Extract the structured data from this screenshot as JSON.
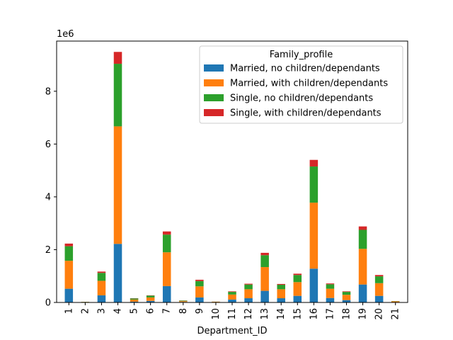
{
  "chart_data": {
    "type": "bar",
    "stacked": true,
    "title": "",
    "xlabel": "Department_ID",
    "ylabel": "",
    "y_offset_label": "1e6",
    "ylim": [
      0,
      9.9
    ],
    "y_ticks": [
      0,
      2,
      4,
      6,
      8
    ],
    "y_unit_multiplier": 1000000,
    "categories": [
      "1",
      "2",
      "3",
      "4",
      "5",
      "6",
      "7",
      "8",
      "9",
      "10",
      "11",
      "12",
      "13",
      "14",
      "15",
      "16",
      "17",
      "18",
      "19",
      "20",
      "21"
    ],
    "legend": {
      "title": "Family_profile",
      "placement": "top-right"
    },
    "series": [
      {
        "name": "Married, no children/dependants",
        "color": "#1f77b4",
        "values": [
          0.52,
          0.005,
          0.27,
          2.22,
          0.03,
          0.06,
          0.62,
          0.02,
          0.19,
          0.005,
          0.11,
          0.16,
          0.44,
          0.16,
          0.25,
          1.28,
          0.17,
          0.09,
          0.68,
          0.25,
          0.01
        ]
      },
      {
        "name": "Married, with children/dependants",
        "color": "#ff7f0e",
        "values": [
          1.06,
          0.015,
          0.55,
          4.45,
          0.08,
          0.13,
          1.28,
          0.03,
          0.42,
          0.02,
          0.19,
          0.34,
          0.9,
          0.34,
          0.52,
          2.5,
          0.35,
          0.2,
          1.35,
          0.48,
          0.03
        ]
      },
      {
        "name": "Single, no children/dependants",
        "color": "#2ca02c",
        "values": [
          0.55,
          0.005,
          0.3,
          2.37,
          0.04,
          0.07,
          0.67,
          0.02,
          0.2,
          0.005,
          0.1,
          0.18,
          0.45,
          0.17,
          0.27,
          1.37,
          0.17,
          0.11,
          0.72,
          0.26,
          0.01
        ]
      },
      {
        "name": "Single, with children/dependants",
        "color": "#d62728",
        "values": [
          0.1,
          0.001,
          0.05,
          0.45,
          0.01,
          0.01,
          0.12,
          0.005,
          0.05,
          0.002,
          0.02,
          0.03,
          0.09,
          0.03,
          0.05,
          0.25,
          0.03,
          0.02,
          0.13,
          0.05,
          0.002
        ]
      }
    ]
  }
}
